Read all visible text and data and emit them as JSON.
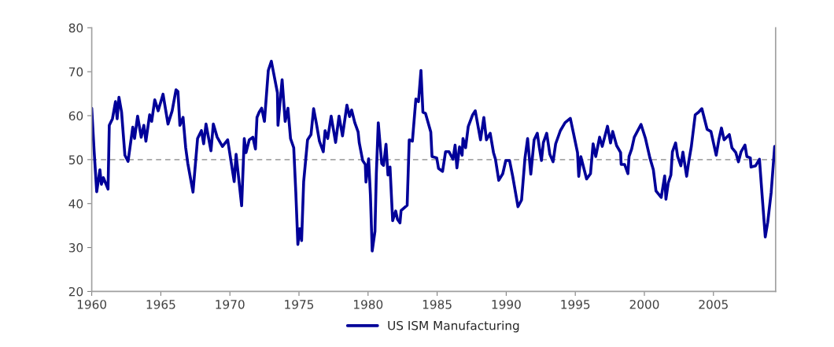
{
  "chart_data": {
    "type": "line",
    "x": [
      1960.0,
      1960.17,
      1960.36,
      1960.59,
      1960.7,
      1960.84,
      1961.18,
      1961.27,
      1961.5,
      1961.72,
      1961.84,
      1961.97,
      1962.16,
      1962.4,
      1962.63,
      1962.97,
      1963.1,
      1963.32,
      1963.58,
      1963.77,
      1963.92,
      1964.19,
      1964.34,
      1964.56,
      1964.81,
      1965.16,
      1965.52,
      1965.82,
      1966.1,
      1966.24,
      1966.38,
      1966.61,
      1966.8,
      1966.95,
      1967.33,
      1967.66,
      1967.94,
      1968.1,
      1968.27,
      1968.63,
      1968.8,
      1969.08,
      1969.46,
      1969.84,
      1970.31,
      1970.45,
      1970.85,
      1971.04,
      1971.17,
      1971.4,
      1971.66,
      1971.85,
      1971.96,
      1972.12,
      1972.3,
      1972.5,
      1972.78,
      1973.0,
      1973.44,
      1973.48,
      1973.78,
      1974.0,
      1974.2,
      1974.39,
      1974.62,
      1974.77,
      1974.92,
      1975.05,
      1975.19,
      1975.34,
      1975.62,
      1975.87,
      1976.06,
      1976.25,
      1976.48,
      1976.76,
      1976.89,
      1977.08,
      1977.33,
      1977.65,
      1977.9,
      1978.15,
      1978.47,
      1978.66,
      1978.81,
      1979.04,
      1979.28,
      1979.36,
      1979.61,
      1979.8,
      1979.85,
      1980.04,
      1980.17,
      1980.3,
      1980.5,
      1980.6,
      1980.74,
      1980.99,
      1981.12,
      1981.3,
      1981.44,
      1981.59,
      1981.78,
      1982.0,
      1982.13,
      1982.31,
      1982.39,
      1982.83,
      1982.98,
      1983.21,
      1983.46,
      1983.65,
      1983.83,
      1983.97,
      1984.16,
      1984.54,
      1984.63,
      1984.97,
      1985.1,
      1985.39,
      1985.61,
      1985.86,
      1986.15,
      1986.3,
      1986.43,
      1986.62,
      1986.81,
      1986.87,
      1987.06,
      1987.25,
      1987.57,
      1987.76,
      1988.14,
      1988.38,
      1988.57,
      1988.84,
      1989.08,
      1989.22,
      1989.46,
      1989.75,
      1989.97,
      1990.24,
      1990.47,
      1990.85,
      1991.11,
      1991.36,
      1991.55,
      1991.78,
      1992.02,
      1992.25,
      1992.4,
      1992.55,
      1992.69,
      1992.93,
      1993.16,
      1993.39,
      1993.58,
      1993.92,
      1994.26,
      1994.64,
      1994.87,
      1995.16,
      1995.25,
      1995.4,
      1995.82,
      1996.1,
      1996.29,
      1996.48,
      1996.76,
      1996.95,
      1997.33,
      1997.55,
      1997.71,
      1997.99,
      1998.28,
      1998.32,
      1998.57,
      1998.81,
      1998.89,
      1999.08,
      1999.27,
      1999.42,
      1999.76,
      2000.08,
      2000.4,
      2000.65,
      2000.84,
      2001.22,
      2001.47,
      2001.56,
      2001.73,
      2001.92,
      2002.03,
      2002.26,
      2002.41,
      2002.64,
      2002.79,
      2003.06,
      2003.21,
      2003.4,
      2003.68,
      2003.93,
      2004.16,
      2004.54,
      2004.82,
      2005.2,
      2005.39,
      2005.58,
      2005.77,
      2006.15,
      2006.34,
      2006.62,
      2006.81,
      2007.0,
      2007.28,
      2007.42,
      2007.67,
      2007.72,
      2008.05,
      2008.33,
      2008.52,
      2008.75,
      2008.93,
      2009.18,
      2009.43,
      2009.5
    ],
    "series": [
      {
        "name": "US ISM Manufacturing",
        "color": "#000099",
        "values": [
          61.7,
          52.1,
          42.7,
          47.7,
          44.4,
          45.9,
          43.3,
          57.8,
          59.3,
          63.2,
          59.3,
          64.2,
          60.8,
          51.0,
          49.6,
          57.4,
          54.8,
          59.9,
          55.1,
          57.8,
          54.2,
          60.2,
          58.7,
          63.6,
          61.1,
          64.9,
          58.1,
          61.1,
          65.9,
          65.5,
          57.8,
          59.6,
          52.7,
          49.2,
          42.6,
          54.8,
          56.6,
          53.6,
          58.1,
          52.0,
          58.1,
          55.1,
          53.0,
          54.5,
          45.0,
          51.2,
          39.5,
          54.8,
          51.6,
          54.5,
          55.1,
          52.4,
          59.6,
          60.8,
          61.7,
          58.7,
          70.3,
          72.4,
          65.2,
          57.8,
          68.2,
          58.7,
          61.7,
          54.8,
          52.7,
          42.6,
          30.7,
          34.3,
          31.6,
          45.0,
          54.5,
          55.7,
          61.6,
          58.4,
          54.2,
          51.8,
          56.6,
          54.8,
          59.9,
          53.9,
          59.9,
          55.4,
          62.4,
          59.8,
          61.3,
          58.4,
          56.3,
          53.9,
          49.8,
          48.9,
          44.9,
          50.2,
          42.0,
          29.2,
          33.7,
          46.8,
          58.4,
          49.1,
          48.7,
          53.5,
          46.5,
          48.3,
          36.1,
          38.3,
          36.4,
          35.6,
          38.4,
          39.6,
          54.5,
          54.2,
          63.8,
          63.2,
          70.3,
          60.8,
          60.5,
          56.3,
          50.7,
          50.4,
          48.0,
          47.3,
          51.8,
          51.8,
          50.1,
          53.3,
          48.1,
          52.9,
          51.0,
          54.8,
          52.7,
          57.5,
          60.2,
          61.1,
          54.5,
          59.6,
          54.5,
          56.0,
          51.6,
          50.1,
          45.3,
          46.8,
          49.8,
          49.8,
          46.2,
          39.3,
          40.8,
          50.4,
          54.8,
          46.7,
          54.5,
          56.0,
          52.7,
          49.8,
          53.9,
          56.0,
          51.2,
          49.5,
          53.6,
          56.6,
          58.4,
          59.4,
          56.0,
          51.6,
          46.2,
          50.7,
          45.6,
          46.8,
          53.6,
          50.7,
          55.1,
          53.0,
          57.6,
          53.8,
          56.4,
          53.2,
          51.6,
          48.9,
          48.9,
          46.8,
          50.7,
          52.4,
          55.1,
          56.0,
          58.0,
          54.8,
          50.4,
          47.7,
          42.9,
          41.4,
          46.3,
          41.0,
          44.7,
          46.5,
          51.8,
          53.8,
          50.7,
          48.6,
          51.7,
          46.2,
          49.5,
          53.0,
          60.2,
          60.8,
          61.6,
          56.9,
          56.4,
          51.0,
          54.5,
          57.2,
          54.5,
          55.7,
          52.7,
          51.6,
          49.5,
          51.8,
          53.3,
          50.7,
          50.4,
          48.3,
          48.6,
          50.1,
          42.0,
          32.4,
          35.8,
          42.6,
          53.0,
          52.7
        ]
      }
    ],
    "xlim": [
      1960,
      2009.5
    ],
    "xticks": [
      1960,
      1965,
      1970,
      1975,
      1980,
      1985,
      1990,
      1995,
      2000,
      2005
    ],
    "ylim": [
      20,
      80
    ],
    "yticks": [
      20,
      30,
      40,
      50,
      60,
      70,
      80
    ],
    "ref_lines": [
      {
        "axis": "y",
        "value": 50,
        "color": "#a6a6a6",
        "line_style": "dashed"
      }
    ],
    "legend": "bottom",
    "grid": false
  }
}
